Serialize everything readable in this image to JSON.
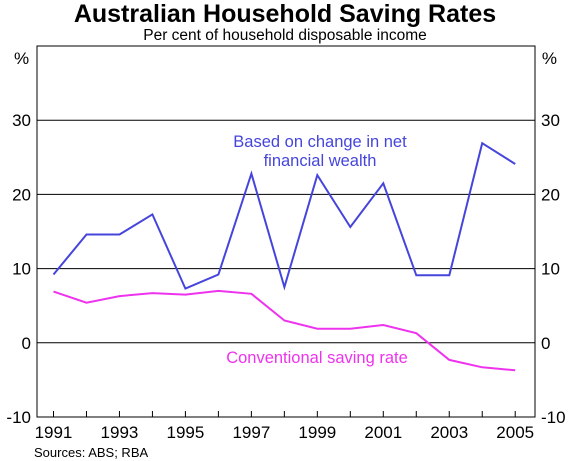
{
  "chart_data": {
    "type": "line",
    "title": "Australian Household Saving Rates",
    "subtitle": "Per cent of household disposable income",
    "y_unit_left": "%",
    "y_unit_right": "%",
    "source": "Sources: ABS; RBA",
    "x": [
      1991,
      1992,
      1993,
      1994,
      1995,
      1996,
      1997,
      1998,
      1999,
      2000,
      2001,
      2002,
      2003,
      2004,
      2005
    ],
    "x_tick_labels": [
      "1991",
      "1993",
      "1995",
      "1997",
      "1999",
      "2001",
      "2003",
      "2005"
    ],
    "y_tick_labels": [
      "-10",
      "0",
      "10",
      "20",
      "30"
    ],
    "ylim": [
      -10,
      40
    ],
    "xlim": [
      1990.5,
      2005.6
    ],
    "gridlines_y": [
      0,
      10,
      20,
      30
    ],
    "series": [
      {
        "name": "Based on change in net financial wealth",
        "label_lines": [
          "Based on change in net",
          "financial wealth"
        ],
        "color": "#4545dc",
        "values": [
          9.2,
          14.6,
          14.6,
          17.3,
          7.3,
          9.2,
          22.8,
          7.5,
          22.6,
          15.6,
          21.5,
          9.1,
          9.1,
          26.9,
          24.1
        ]
      },
      {
        "name": "Conventional saving rate",
        "label_lines": [
          "Conventional saving rate"
        ],
        "color": "#ee33ee",
        "values": [
          6.9,
          5.4,
          6.3,
          6.7,
          6.5,
          7.0,
          6.6,
          3.0,
          1.9,
          1.9,
          2.4,
          1.3,
          -2.3,
          -3.3,
          -3.7
        ]
      }
    ]
  }
}
